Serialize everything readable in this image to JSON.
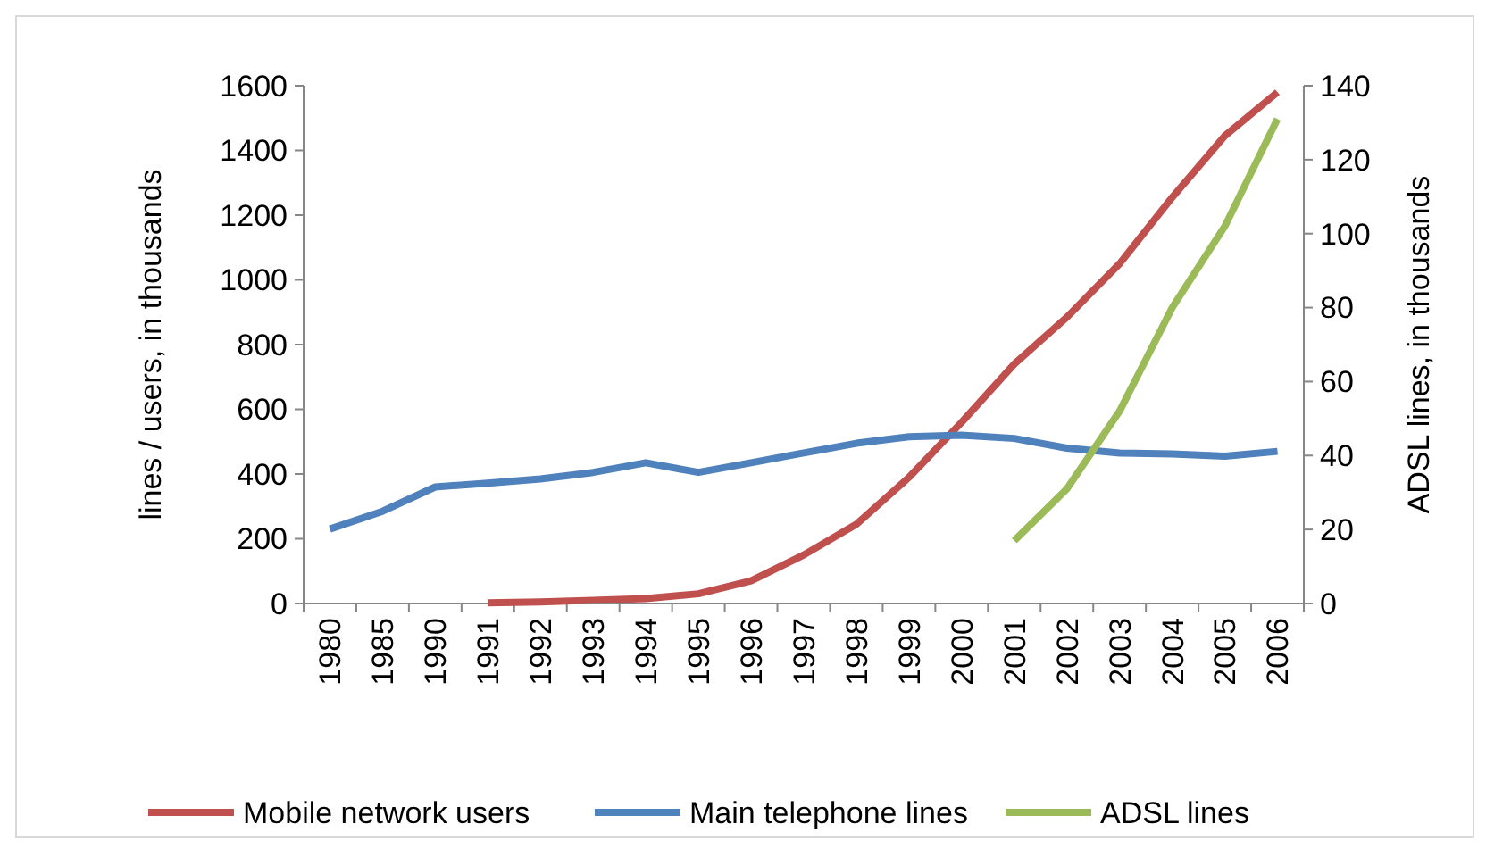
{
  "chart_data": {
    "type": "line",
    "ylabel": "lines / users, in thousands",
    "y2label": "ADSL lines, in thousands",
    "categories": [
      "1980",
      "1985",
      "1990",
      "1991",
      "1992",
      "1993",
      "1994",
      "1995",
      "1996",
      "1997",
      "1998",
      "1999",
      "2000",
      "2001",
      "2002",
      "2003",
      "2004",
      "2005",
      "2006"
    ],
    "series": [
      {
        "name": "Mobile network users",
        "color": "#c0504d",
        "values": [
          null,
          null,
          null,
          2,
          5,
          10,
          15,
          30,
          70,
          150,
          245,
          390,
          560,
          740,
          885,
          1050,
          1255,
          1445,
          1580
        ]
      },
      {
        "name": "Main telephone lines",
        "color": "#4f81bd",
        "values": [
          230,
          285,
          360,
          372,
          385,
          405,
          435,
          405,
          435,
          465,
          495,
          515,
          520,
          510,
          480,
          465,
          462,
          455,
          470
        ]
      },
      {
        "name": "ADSL lines",
        "color": "#9bbb59",
        "axis": "y2",
        "values": [
          null,
          null,
          null,
          null,
          null,
          null,
          null,
          null,
          null,
          null,
          null,
          null,
          null,
          17,
          31,
          52,
          80,
          102,
          131
        ]
      }
    ],
    "ylim": [
      0,
      1600
    ],
    "yticks": [
      0,
      200,
      400,
      600,
      800,
      1000,
      1200,
      1400,
      1600
    ],
    "y2lim": [
      0,
      140
    ],
    "y2ticks": [
      0,
      20,
      40,
      60,
      80,
      100,
      120,
      140
    ],
    "legend": "bottom",
    "grid": false,
    "marker": "none",
    "line_style": "solid"
  }
}
